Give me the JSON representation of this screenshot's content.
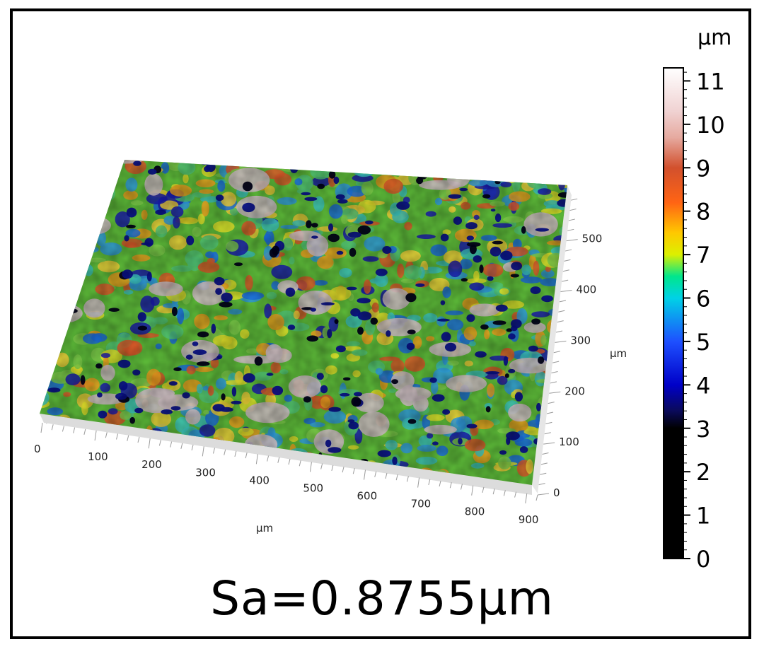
{
  "figure": {
    "caption": "Sa=0.8755μm"
  },
  "surface_plot": {
    "x_axis": {
      "label": "μm",
      "ticks": [
        0,
        100,
        200,
        300,
        400,
        500,
        600,
        700,
        800,
        900
      ]
    },
    "y_axis": {
      "label": "μm",
      "ticks": [
        0,
        100,
        200,
        300,
        400,
        500
      ]
    },
    "x_range": [
      0,
      920
    ],
    "y_range": [
      0,
      590
    ],
    "colormap": [
      {
        "z": 0,
        "color": "#000000"
      },
      {
        "z": 3,
        "color": "#000000"
      },
      {
        "z": 3.4,
        "color": "#0a0a5a"
      },
      {
        "z": 4,
        "color": "#0000c8"
      },
      {
        "z": 5,
        "color": "#1e50ff"
      },
      {
        "z": 6,
        "color": "#00d2e6"
      },
      {
        "z": 6.5,
        "color": "#00e68c"
      },
      {
        "z": 7,
        "color": "#dcf000"
      },
      {
        "z": 7.5,
        "color": "#ffc800"
      },
      {
        "z": 8.2,
        "color": "#ff6414"
      },
      {
        "z": 9,
        "color": "#d2502d"
      },
      {
        "z": 9.7,
        "color": "#e6aaa0"
      },
      {
        "z": 10.3,
        "color": "#f0d2d2"
      },
      {
        "z": 11.3,
        "color": "#ffffff"
      }
    ]
  },
  "colorbar": {
    "unit_label": "μm",
    "ticks": [
      "0",
      "1",
      "2",
      "3",
      "4",
      "5",
      "6",
      "7",
      "8",
      "9",
      "10",
      "11"
    ],
    "range": [
      0,
      11.3
    ]
  }
}
